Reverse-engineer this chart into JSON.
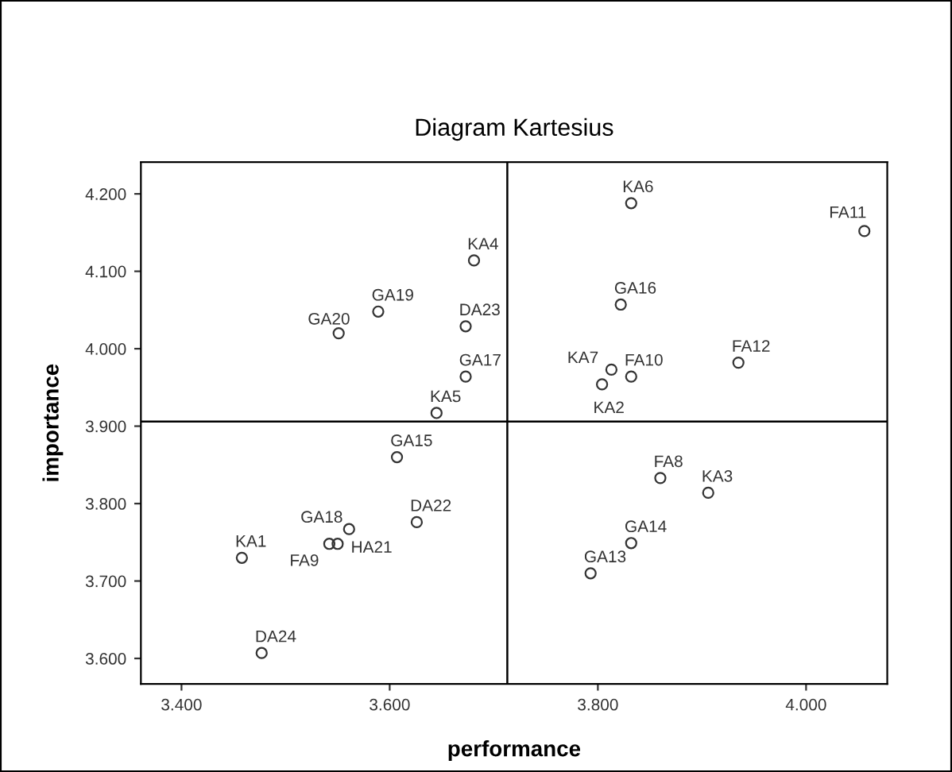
{
  "chart_data": {
    "type": "scatter",
    "title": "Diagram Kartesius",
    "xlabel": "performance",
    "ylabel": "importance",
    "x": [
      3.681,
      3.589,
      3.551,
      3.673,
      3.673,
      3.645,
      3.607,
      3.832,
      4.056,
      3.822,
      3.813,
      3.832,
      3.804,
      3.935,
      3.86,
      3.906,
      3.832,
      3.793,
      3.458,
      3.561,
      3.542,
      3.55,
      3.626,
      3.477
    ],
    "series": [
      {
        "color": "#333333",
        "values": [
          4.114,
          4.048,
          4.02,
          4.029,
          3.964,
          3.917,
          3.86,
          4.188,
          4.152,
          4.057,
          3.973,
          3.964,
          3.954,
          3.982,
          3.833,
          3.814,
          3.749,
          3.71,
          3.73,
          3.767,
          3.748,
          3.748,
          3.776,
          3.607
        ],
        "value_labels": [
          "KA4",
          "GA19",
          "GA20",
          "DA23",
          "GA17",
          "KA5",
          "GA15",
          "KA6",
          "FA11",
          "GA16",
          "KA7",
          "FA10",
          "KA2",
          "FA12",
          "FA8",
          "KA3",
          "GA14",
          "GA13",
          "KA1",
          "GA18",
          "FA9",
          "HA21",
          "DA22",
          "DA24"
        ]
      }
    ],
    "marker": "circle",
    "grid": false,
    "legend": false,
    "xlim": [
      3.361,
      4.078
    ],
    "ylim": [
      3.567,
      4.241
    ],
    "xticks": [
      {
        "value": 3.4,
        "label": "3.400"
      },
      {
        "value": 3.6,
        "label": "3.600"
      },
      {
        "value": 3.8,
        "label": "3.800"
      },
      {
        "value": 4.0,
        "label": "4.000"
      }
    ],
    "yticks": [
      {
        "value": 3.6,
        "label": "3.600"
      },
      {
        "value": 3.7,
        "label": "3.700"
      },
      {
        "value": 3.8,
        "label": "3.800"
      },
      {
        "value": 3.9,
        "label": "3.900"
      },
      {
        "value": 4.0,
        "label": "4.000"
      },
      {
        "value": 4.1,
        "label": "4.100"
      },
      {
        "value": 4.2,
        "label": "4.200"
      }
    ],
    "ref_lines": [
      {
        "axis": "x",
        "value": 3.713,
        "color": "#000000"
      },
      {
        "axis": "y",
        "value": 3.906,
        "color": "#000000"
      }
    ]
  }
}
